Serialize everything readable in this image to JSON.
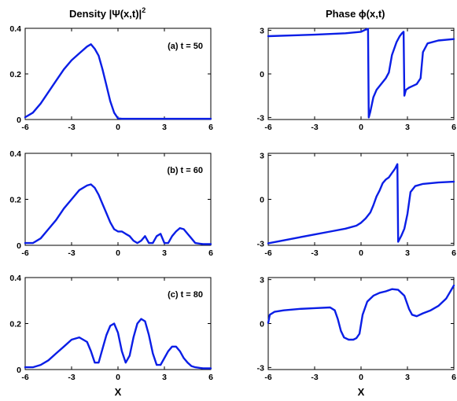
{
  "titles": {
    "density": "Density  |Ψ(x,t)|",
    "density_sup": "2",
    "phase": "Phase ϕ(x,t)"
  },
  "xlabel": "X",
  "colors": {
    "curve": "#0a1ee6",
    "axis": "#000000"
  },
  "chart_data": [
    {
      "type": "line",
      "id": "density-t50",
      "annotation": "(a) t = 50",
      "xlim": [
        -6,
        6
      ],
      "ylim": [
        0,
        0.4
      ],
      "xticks": [
        -6,
        -3,
        0,
        3,
        6
      ],
      "yticks": [
        0,
        0.2,
        0.4
      ],
      "xtick_labels": [
        "-6",
        "-3",
        "0",
        "3",
        "6"
      ],
      "ytick_labels": [
        "0",
        "0.2",
        "0.4"
      ],
      "x": [
        -6,
        -5.5,
        -5,
        -4.5,
        -4,
        -3.5,
        -3,
        -2.5,
        -2,
        -1.75,
        -1.5,
        -1.25,
        -1,
        -0.75,
        -0.5,
        -0.25,
        0,
        0.25,
        1,
        3,
        6
      ],
      "y": [
        0.01,
        0.03,
        0.07,
        0.12,
        0.17,
        0.22,
        0.26,
        0.29,
        0.32,
        0.33,
        0.31,
        0.28,
        0.22,
        0.15,
        0.08,
        0.03,
        0.005,
        0.003,
        0.003,
        0.003,
        0.003
      ]
    },
    {
      "type": "line",
      "id": "phase-t50",
      "xlim": [
        -6,
        6
      ],
      "ylim": [
        -3.14,
        3.14
      ],
      "xticks": [
        -6,
        -3,
        0,
        3,
        6
      ],
      "yticks": [
        -3,
        0,
        3
      ],
      "xtick_labels": [
        "-6",
        "-3",
        "0",
        "3",
        "6"
      ],
      "ytick_labels": [
        "-3",
        "0",
        "3"
      ],
      "x": [
        -6,
        -3,
        -1,
        0,
        0.3,
        0.45,
        0.5,
        0.6,
        0.8,
        1.0,
        1.3,
        1.6,
        1.8,
        2.0,
        2.3,
        2.5,
        2.65,
        2.75,
        2.8,
        2.9,
        3.1,
        3.3,
        3.6,
        3.85,
        4.0,
        4.3,
        5,
        6
      ],
      "y": [
        2.6,
        2.7,
        2.8,
        2.9,
        3.05,
        3.1,
        -3.0,
        -2.6,
        -1.6,
        -1.1,
        -0.7,
        -0.3,
        0.1,
        1.3,
        2.2,
        2.6,
        2.8,
        2.9,
        -1.5,
        -1.1,
        -0.95,
        -0.85,
        -0.7,
        -0.3,
        1.5,
        2.1,
        2.3,
        2.4
      ]
    },
    {
      "type": "line",
      "id": "density-t60",
      "annotation": "(b) t = 60",
      "xlim": [
        -6,
        6
      ],
      "ylim": [
        0,
        0.4
      ],
      "xticks": [
        -6,
        -3,
        0,
        3,
        6
      ],
      "yticks": [
        0,
        0.2,
        0.4
      ],
      "xtick_labels": [
        "-6",
        "-3",
        "0",
        "3",
        "6"
      ],
      "ytick_labels": [
        "0",
        "0.2",
        "0.4"
      ],
      "x": [
        -6,
        -5.5,
        -5,
        -4.5,
        -4,
        -3.5,
        -3,
        -2.5,
        -2,
        -1.75,
        -1.5,
        -1.25,
        -1,
        -0.75,
        -0.5,
        -0.25,
        0,
        0.25,
        0.5,
        0.75,
        1,
        1.25,
        1.5,
        1.75,
        2,
        2.25,
        2.5,
        2.75,
        3,
        3.25,
        3.5,
        3.75,
        4,
        4.25,
        4.5,
        4.75,
        5,
        5.5,
        6
      ],
      "y": [
        0.01,
        0.01,
        0.03,
        0.07,
        0.11,
        0.16,
        0.2,
        0.24,
        0.26,
        0.265,
        0.25,
        0.22,
        0.18,
        0.14,
        0.1,
        0.07,
        0.06,
        0.06,
        0.05,
        0.04,
        0.02,
        0.01,
        0.02,
        0.04,
        0.01,
        0.01,
        0.04,
        0.05,
        0.01,
        0.01,
        0.04,
        0.06,
        0.075,
        0.07,
        0.05,
        0.03,
        0.01,
        0.005,
        0.005
      ]
    },
    {
      "type": "line",
      "id": "phase-t60",
      "xlim": [
        -6,
        6
      ],
      "ylim": [
        -3.14,
        3.14
      ],
      "xticks": [
        -6,
        -3,
        0,
        3,
        6
      ],
      "yticks": [
        -3,
        0,
        3
      ],
      "xtick_labels": [
        "-6",
        "-3",
        "0",
        "3",
        "6"
      ],
      "ytick_labels": [
        "-3",
        "0",
        "3"
      ],
      "x": [
        -6,
        -5,
        -4,
        -3,
        -2,
        -1,
        -0.3,
        0,
        0.3,
        0.6,
        0.8,
        1.0,
        1.2,
        1.4,
        1.6,
        1.8,
        2.0,
        2.2,
        2.3,
        2.35,
        2.4,
        2.6,
        2.8,
        3.0,
        3.2,
        3.5,
        4,
        5,
        6
      ],
      "y": [
        -3.0,
        -2.8,
        -2.6,
        -2.4,
        -2.2,
        -2.0,
        -1.8,
        -1.6,
        -1.3,
        -0.9,
        -0.4,
        0.2,
        0.6,
        1.1,
        1.35,
        1.5,
        1.8,
        2.1,
        2.3,
        2.4,
        -2.9,
        -2.5,
        -2.0,
        -1.0,
        0.5,
        0.9,
        1.05,
        1.15,
        1.2
      ]
    },
    {
      "type": "line",
      "id": "density-t80",
      "annotation": "(c) t = 80",
      "xlim": [
        -6,
        6
      ],
      "ylim": [
        0,
        0.4
      ],
      "xticks": [
        -6,
        -3,
        0,
        3,
        6
      ],
      "yticks": [
        0,
        0.2,
        0.4
      ],
      "xtick_labels": [
        "-6",
        "-3",
        "0",
        "3",
        "6"
      ],
      "ytick_labels": [
        "0",
        "0.2",
        "0.4"
      ],
      "x": [
        -6,
        -5.5,
        -5,
        -4.5,
        -4,
        -3.5,
        -3,
        -2.5,
        -2,
        -1.75,
        -1.5,
        -1.25,
        -1,
        -0.75,
        -0.5,
        -0.25,
        0,
        0.25,
        0.5,
        0.75,
        1,
        1.25,
        1.5,
        1.75,
        2,
        2.25,
        2.5,
        2.75,
        3,
        3.25,
        3.5,
        3.75,
        4,
        4.25,
        4.5,
        4.75,
        5,
        5.5,
        6
      ],
      "y": [
        0.01,
        0.01,
        0.02,
        0.04,
        0.07,
        0.1,
        0.13,
        0.14,
        0.12,
        0.08,
        0.03,
        0.03,
        0.09,
        0.15,
        0.19,
        0.2,
        0.16,
        0.08,
        0.03,
        0.06,
        0.14,
        0.2,
        0.22,
        0.21,
        0.15,
        0.07,
        0.02,
        0.02,
        0.05,
        0.08,
        0.1,
        0.1,
        0.08,
        0.05,
        0.03,
        0.015,
        0.01,
        0.005,
        0.005
      ]
    },
    {
      "type": "line",
      "id": "phase-t80",
      "xlim": [
        -6,
        6
      ],
      "ylim": [
        -3.14,
        3.14
      ],
      "xticks": [
        -6,
        -3,
        0,
        3,
        6
      ],
      "yticks": [
        -3,
        0,
        3
      ],
      "xtick_labels": [
        "-6",
        "-3",
        "0",
        "3",
        "6"
      ],
      "ytick_labels": [
        "-3",
        "0",
        "3"
      ],
      "x": [
        -6,
        -5.9,
        -5.6,
        -5,
        -4,
        -3,
        -2,
        -1.7,
        -1.5,
        -1.3,
        -1.1,
        -0.8,
        -0.5,
        -0.3,
        -0.1,
        0.1,
        0.4,
        0.8,
        1.2,
        1.6,
        2.0,
        2.4,
        2.8,
        3.1,
        3.3,
        3.6,
        4.0,
        4.5,
        5,
        5.5,
        6
      ],
      "y": [
        0.05,
        0.6,
        0.8,
        0.9,
        1.0,
        1.05,
        1.1,
        0.9,
        0.3,
        -0.5,
        -0.95,
        -1.1,
        -1.1,
        -1.0,
        -0.7,
        0.6,
        1.5,
        1.9,
        2.1,
        2.2,
        2.35,
        2.3,
        1.9,
        1.0,
        0.6,
        0.5,
        0.7,
        0.9,
        1.2,
        1.7,
        2.6
      ]
    }
  ]
}
